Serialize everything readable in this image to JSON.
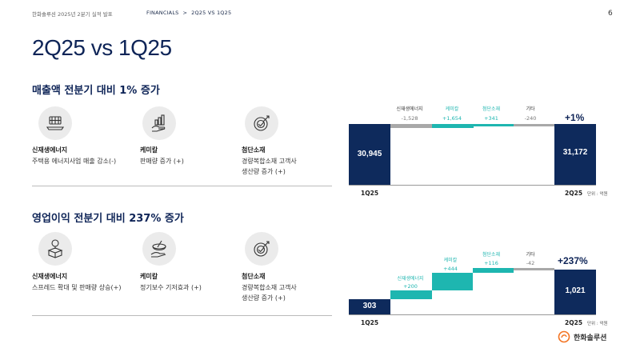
{
  "header": {
    "doc_title": "한화솔루션 2025년 2분기 실적 발표",
    "crumb_section": "FINANCIALS",
    "crumb_sep": ">",
    "crumb_page": "2Q25 VS 1Q25",
    "page_number": "6"
  },
  "title": "2Q25 vs 1Q25",
  "sales": {
    "heading": "매출액 전분기 대비 1% 증가",
    "items": [
      {
        "name": "신재생에너지",
        "desc": [
          "주택용 에너지사업 매출 감소(-)"
        ],
        "icon": "solar-panel-icon"
      },
      {
        "name": "케미칼",
        "desc": [
          "판매량 증가 (+)"
        ],
        "icon": "hand-chart-icon"
      },
      {
        "name": "첨단소재",
        "desc": [
          "경량복합소재 고객사",
          "생산량 증가 (+)"
        ],
        "icon": "target-arrow-icon"
      }
    ],
    "chart": {
      "start_label": "1Q25",
      "start_value": "30,945",
      "end_label": "2Q25",
      "end_value": "31,172",
      "unit": "단위 : 억원",
      "change_pct": "+1%",
      "steps": [
        {
          "name": "신재생에너지",
          "value": "-1,528",
          "color": "gray"
        },
        {
          "name": "케미칼",
          "value": "+1,654",
          "color": "teal"
        },
        {
          "name": "첨단소재",
          "value": "+341",
          "color": "teal"
        },
        {
          "name": "기타",
          "value": "-240",
          "color": "gray"
        }
      ]
    }
  },
  "op": {
    "heading": "영업이익 전분기 대비 237% 증가",
    "items": [
      {
        "name": "신재생에너지",
        "desc": [
          "스프레드 확대 및 판매량 상승(+)"
        ],
        "icon": "globe-box-icon"
      },
      {
        "name": "케미칼",
        "desc": [
          "정기보수 기저효과 (+)"
        ],
        "icon": "hand-bowl-icon"
      },
      {
        "name": "첨단소재",
        "desc": [
          "경량복합소재 고객사",
          "생산량 증가 (+)"
        ],
        "icon": "target-arrow-icon"
      }
    ],
    "chart": {
      "start_label": "1Q25",
      "start_value": "303",
      "end_label": "2Q25",
      "end_value": "1,021",
      "unit": "단위 : 억원",
      "change_pct": "+237%",
      "steps": [
        {
          "name": "신재생에너지",
          "value": "+200",
          "color": "teal"
        },
        {
          "name": "케미칼",
          "value": "+444",
          "color": "teal"
        },
        {
          "name": "첨단소재",
          "value": "+116",
          "color": "teal"
        },
        {
          "name": "기타",
          "value": "-42",
          "color": "gray"
        }
      ]
    }
  },
  "logo_text": "한화솔루션",
  "colors": {
    "navy": "#0e2a5c",
    "teal": "#1eb6b0",
    "gray": "#a8a8a8"
  }
}
